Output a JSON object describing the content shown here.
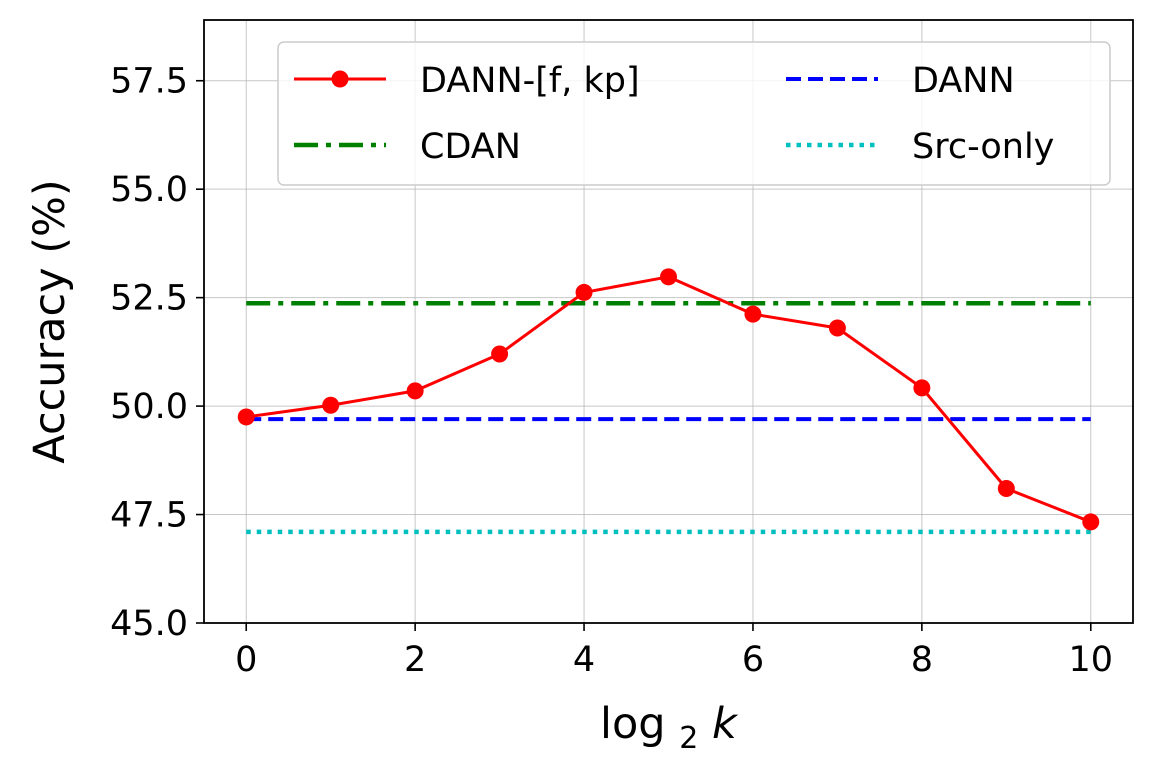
{
  "chart_data": {
    "type": "line",
    "title": "",
    "xlabel": "log",
    "xlabel_sub": "2",
    "xlabel_italic": "k",
    "ylabel": "Accuracy (%)",
    "xlim": [
      -0.5,
      10.5
    ],
    "ylim": [
      45.0,
      58.9
    ],
    "xticks": [
      0,
      2,
      4,
      6,
      8,
      10
    ],
    "xtick_labels": [
      "0",
      "2",
      "4",
      "6",
      "8",
      "10"
    ],
    "yticks": [
      45.0,
      47.5,
      50.0,
      52.5,
      55.0,
      57.5
    ],
    "ytick_labels": [
      "45.0",
      "47.5",
      "50.0",
      "52.5",
      "55.0",
      "57.5"
    ],
    "grid": true,
    "legend": {
      "placement": "top-right",
      "columns": 2
    },
    "series": [
      {
        "name": "DANN-[f, kp]",
        "style": "solid-marker",
        "color": "#ff0000",
        "x": [
          0,
          1,
          2,
          3,
          4,
          5,
          6,
          7,
          8,
          9,
          10
        ],
        "y": [
          49.75,
          50.02,
          50.35,
          51.2,
          52.62,
          52.98,
          52.12,
          51.8,
          50.42,
          48.1,
          47.33
        ]
      },
      {
        "name": "DANN",
        "style": "dashed",
        "color": "#0000ff",
        "x": [
          0,
          10
        ],
        "y": [
          49.7,
          49.7
        ]
      },
      {
        "name": "CDAN",
        "style": "dashdot",
        "color": "#008000",
        "x": [
          0,
          10
        ],
        "y": [
          52.37,
          52.37
        ]
      },
      {
        "name": "Src-only",
        "style": "dotted",
        "color": "#00bfbf",
        "x": [
          0,
          10
        ],
        "y": [
          47.1,
          47.1
        ]
      }
    ]
  }
}
